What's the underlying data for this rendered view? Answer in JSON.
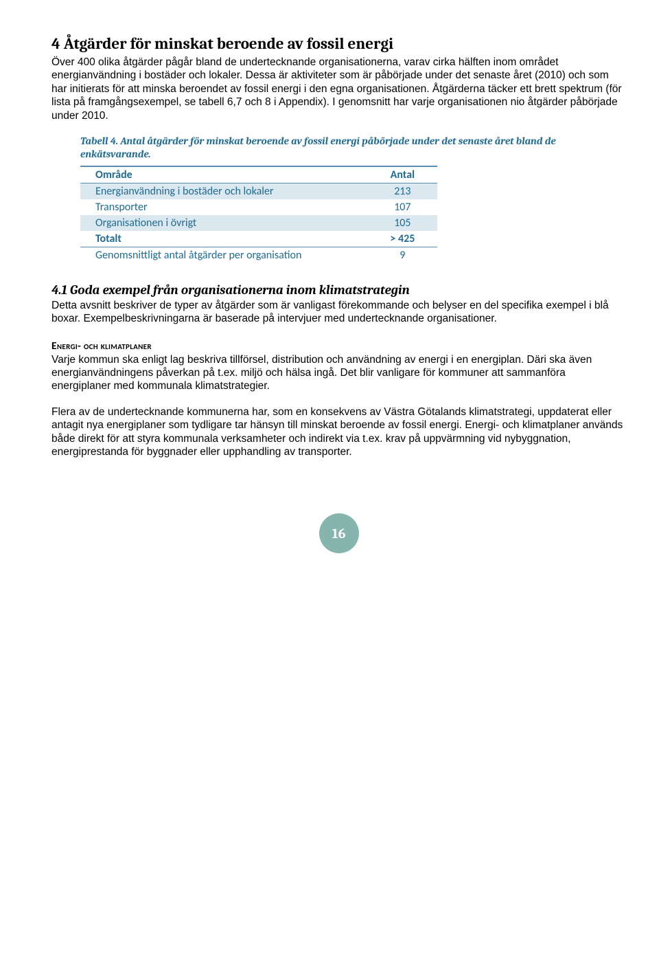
{
  "heading1": "4   Åtgärder för minskat beroende av fossil energi",
  "para1": "Över 400 olika åtgärder pågår bland de undertecknande organisationerna, varav cirka hälften inom området energianvändning i bostäder och lokaler. Dessa är aktiviteter som är påbörjade under det senaste året (2010) och som har initierats för att minska beroendet av fossil energi i den egna organisationen. Åtgärderna täcker ett brett spektrum (för lista på framgångsexempel, se tabell 6,7 och 8 i Appendix). I genomsnitt har varje organisationen nio åtgärder påbörjade under 2010.",
  "tableCaption": "Tabell 4. Antal åtgärder för minskat beroende av fossil energi påbörjade under det senaste året bland de enkätsvarande.",
  "table": {
    "headers": [
      "Område",
      "Antal"
    ],
    "rows": [
      {
        "label": "Energianvändning i bostäder och lokaler",
        "value": "213",
        "band": true
      },
      {
        "label": "Transporter",
        "value": "107",
        "band": false
      },
      {
        "label": "Organisationen i övrigt",
        "value": "105",
        "band": true
      },
      {
        "label": "Totalt",
        "value": "> 425",
        "total": true
      },
      {
        "label": "Genomsnittligt antal åtgärder per organisation",
        "value": "9",
        "footer": true
      }
    ]
  },
  "heading2": "4.1 Goda exempel från organisationerna inom klimatstrategin",
  "para2": "Detta avsnitt beskriver de typer av åtgärder som är vanligast förekommande och belyser en del specifika exempel i blå boxar. Exempelbeskrivningarna är baserade på intervjuer med undertecknande organisationer.",
  "subhead1": "Energi- och klimatplaner",
  "para3": "Varje kommun ska enligt lag beskriva tillförsel, distribution och användning av energi i en energiplan. Däri ska även energianvändningens påverkan på t.ex. miljö och hälsa ingå. Det blir vanligare för kommuner att sammanföra energiplaner med kommunala klimatstrategier.",
  "para4": "Flera av de undertecknande kommunerna har, som en konsekvens av Västra Götalands klimatstrategi, uppdaterat eller antagit nya energiplaner som tydligare tar hänsyn till minskat beroende av fossil energi. Energi- och klimatplaner används både direkt för att styra kommunala verksamheter och indirekt via t.ex. krav på uppvärmning vid nybyggnation, energiprestanda för byggnader eller upphandling av transporter.",
  "pageNumber": "16"
}
